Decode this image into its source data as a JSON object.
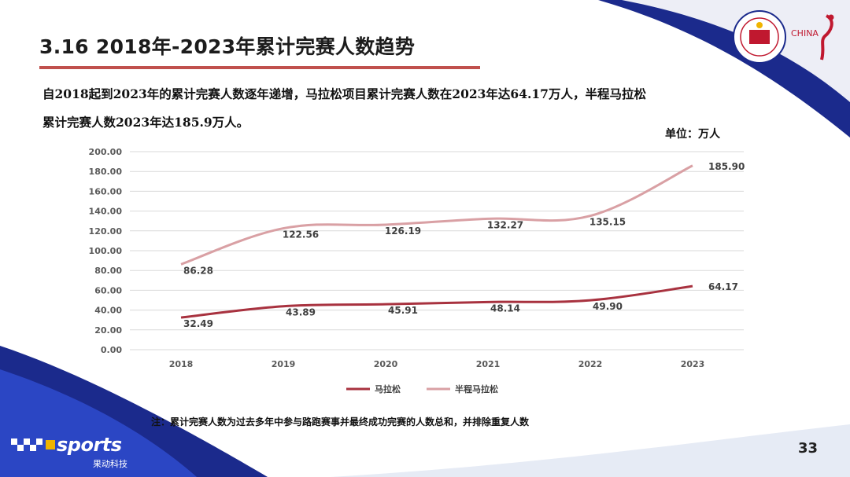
{
  "slide": {
    "title": "3.16 2018年-2023年累计完赛人数趋势",
    "intro_line1": "自2018起到2023年的累计完赛人数逐年递增，马拉松项目累计完赛人数在2023年达64.17万人，半程马拉松",
    "intro_line2": "累计完赛人数2023年达185.9万人。",
    "unit": "单位：万人",
    "note": "注：累计完赛人数为过去多年中参与路跑赛事并最终成功完赛的人数总和，并排除重复人数",
    "page_number": "33",
    "brand_name": "sports",
    "brand_sub": "果动科技",
    "china_text": "CHINA",
    "colors": {
      "marathon": "#a8323f",
      "half_marathon": "#d9a0a4",
      "accent_red": "#c0504d",
      "navy": "#1b2a8c"
    }
  },
  "chart_data": {
    "type": "line",
    "x": [
      "2018",
      "2019",
      "2020",
      "2021",
      "2022",
      "2023"
    ],
    "series": [
      {
        "name": "马拉松",
        "values": [
          32.49,
          43.89,
          45.91,
          48.14,
          49.9,
          64.17
        ],
        "labels": [
          "32.49",
          "43.89",
          "45.91",
          "48.14",
          "49.90",
          "64.17"
        ]
      },
      {
        "name": "半程马拉松",
        "values": [
          86.28,
          122.56,
          126.19,
          132.27,
          135.15,
          185.9
        ],
        "labels": [
          "86.28",
          "122.56",
          "126.19",
          "132.27",
          "135.15",
          "185.90"
        ]
      }
    ],
    "ylim": [
      0,
      200
    ],
    "yticks": [
      "0.00",
      "20.00",
      "40.00",
      "60.00",
      "80.00",
      "100.00",
      "120.00",
      "140.00",
      "160.00",
      "180.00",
      "200.00"
    ],
    "smooth": true,
    "grid": true,
    "legend": "bottom"
  }
}
